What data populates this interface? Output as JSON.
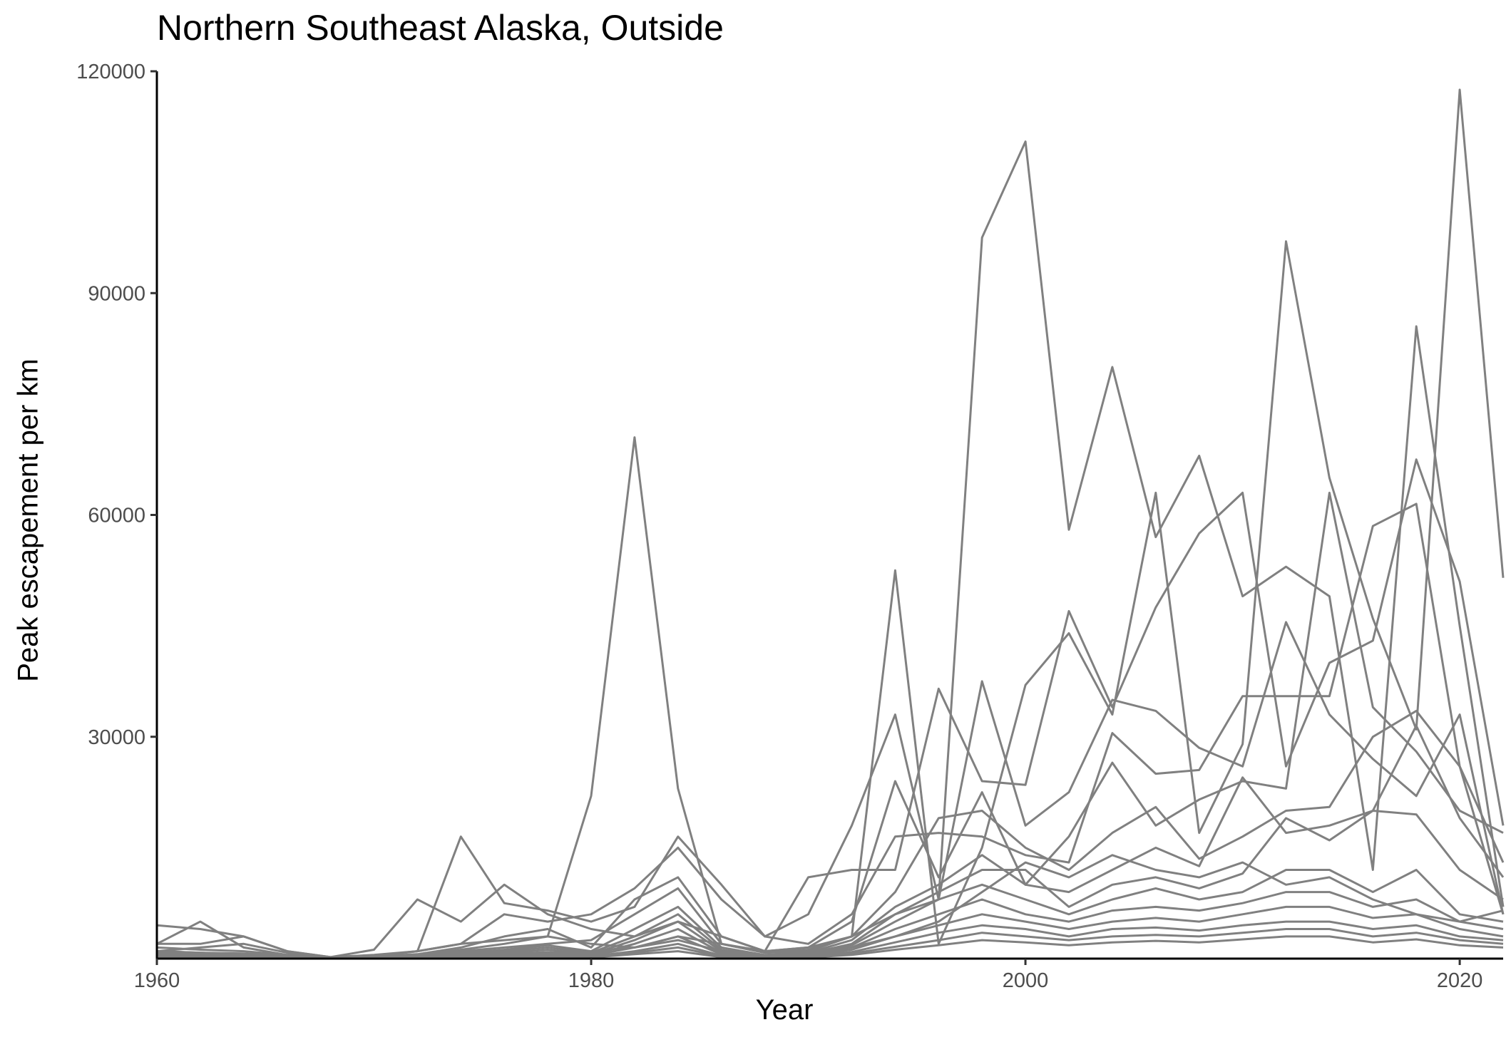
{
  "chart_data": {
    "type": "line",
    "title": "Northern Southeast Alaska, Outside",
    "xlabel": "Year",
    "ylabel": "Peak escapement per km",
    "xlim": [
      1960,
      2022
    ],
    "ylim": [
      0,
      120000
    ],
    "xticks": [
      1960,
      1980,
      2000,
      2020
    ],
    "yticks": [
      30000,
      60000,
      90000,
      120000
    ],
    "grid": false,
    "legend": "none",
    "line_color": "#808080",
    "series": [
      {
        "x": [
          1960,
          1962,
          1964,
          1966,
          1968,
          1970,
          1972,
          1974,
          1976,
          1978,
          1980,
          1982,
          1984,
          1986,
          1988,
          1990,
          1992,
          1994,
          1996,
          1998,
          2000,
          2002,
          2004,
          2006,
          2008,
          2010,
          2012,
          2014,
          2016,
          2018,
          2020,
          2022
        ],
        "values": [
          500,
          800,
          600,
          300,
          100,
          400,
          1000,
          2000,
          2500,
          3000,
          2000,
          1500,
          3000,
          2000,
          1000,
          1500,
          3000,
          6000,
          8000,
          97500,
          110500,
          58000,
          80000,
          57000,
          68000,
          49000,
          53000,
          49000,
          12000,
          85500,
          45000,
          7000
        ]
      },
      {
        "x": [
          1960,
          1962,
          1964,
          1966,
          1968,
          1970,
          1972,
          1974,
          1976,
          1978,
          1980,
          1982,
          1984,
          1986,
          1988,
          1990,
          1992,
          1994,
          1996,
          1998,
          2000,
          2002,
          2004,
          2006,
          2008,
          2010,
          2012,
          2014,
          2016,
          2018,
          2020,
          2022
        ],
        "values": [
          1000,
          800,
          600,
          300,
          100,
          200,
          500,
          1200,
          2000,
          3000,
          22000,
          70500,
          23000,
          2000,
          800,
          1200,
          3000,
          52500,
          2000,
          15000,
          37000,
          44000,
          33000,
          63000,
          17000,
          29000,
          97000,
          65000,
          46000,
          31000,
          117500,
          51500
        ]
      },
      {
        "x": [
          1960,
          1962,
          1964,
          1966,
          1968,
          1970,
          1972,
          1974,
          1976,
          1978,
          1980,
          1982,
          1984,
          1986,
          1988,
          1990,
          1992,
          1994,
          1996,
          1998,
          2000,
          2002,
          2004,
          2006,
          2008,
          2010,
          2012,
          2014,
          2016,
          2018,
          2020,
          2022
        ],
        "values": [
          4500,
          4000,
          3000,
          1000,
          200,
          1200,
          8000,
          5000,
          10000,
          6000,
          4000,
          3000,
          5000,
          3000,
          1000,
          11000,
          12000,
          12000,
          36500,
          24000,
          23500,
          47000,
          34000,
          47500,
          57500,
          63000,
          26000,
          40000,
          43000,
          67500,
          51000,
          18000
        ]
      },
      {
        "x": [
          1960,
          1962,
          1964,
          1966,
          1968,
          1970,
          1972,
          1974,
          1976,
          1978,
          1980,
          1982,
          1984,
          1986,
          1988,
          1990,
          1992,
          1994,
          1996,
          1998,
          2000,
          2002,
          2004,
          2006,
          2008,
          2010,
          2012,
          2014,
          2016,
          2018,
          2020,
          2022
        ],
        "values": [
          2000,
          5000,
          1500,
          500,
          100,
          300,
          1000,
          16500,
          7500,
          6500,
          5000,
          7000,
          16500,
          10000,
          3000,
          6000,
          18000,
          33000,
          8000,
          37500,
          18000,
          22500,
          35000,
          33500,
          28500,
          26000,
          45500,
          33000,
          27000,
          22000,
          33000,
          6000
        ]
      },
      {
        "x": [
          1960,
          1962,
          1964,
          1966,
          1968,
          1970,
          1972,
          1974,
          1976,
          1978,
          1980,
          1982,
          1984,
          1986,
          1988,
          1990,
          1992,
          1994,
          1996,
          1998,
          2000,
          2002,
          2004,
          2006,
          2008,
          2010,
          2012,
          2014,
          2016,
          2018,
          2020,
          2022
        ],
        "values": [
          2000,
          2000,
          3000,
          1000,
          200,
          500,
          1000,
          2000,
          6000,
          5000,
          6000,
          9500,
          15000,
          8000,
          3000,
          2000,
          6000,
          16500,
          17000,
          16500,
          14000,
          13000,
          30500,
          25000,
          25500,
          35500,
          35500,
          35500,
          58500,
          61500,
          26000,
          6000
        ]
      },
      {
        "x": [
          1960,
          1962,
          1964,
          1966,
          1968,
          1970,
          1972,
          1974,
          1976,
          1978,
          1980,
          1982,
          1984,
          1986,
          1988,
          1990,
          1992,
          1994,
          1996,
          1998,
          2000,
          2002,
          2004,
          2006,
          2008,
          2010,
          2012,
          2014,
          2016,
          2018,
          2020,
          2022
        ],
        "values": [
          1000,
          1500,
          2000,
          800,
          100,
          300,
          600,
          1500,
          3000,
          4000,
          1500,
          8000,
          11000,
          3000,
          1000,
          1500,
          5000,
          24000,
          11000,
          22500,
          10000,
          16500,
          26500,
          18000,
          21500,
          24000,
          23000,
          63000,
          34000,
          28000,
          20000,
          17000
        ]
      },
      {
        "x": [
          1960,
          1962,
          1964,
          1966,
          1968,
          1970,
          1972,
          1974,
          1976,
          1978,
          1980,
          1982,
          1984,
          1986,
          1988,
          1990,
          1992,
          1994,
          1996,
          1998,
          2000,
          2002,
          2004,
          2006,
          2008,
          2010,
          2012,
          2014,
          2016,
          2018,
          2020,
          2022
        ],
        "values": [
          1500,
          1200,
          1000,
          500,
          100,
          200,
          400,
          1000,
          1500,
          2000,
          2500,
          6000,
          9500,
          2000,
          800,
          1000,
          3000,
          9000,
          19000,
          20000,
          15000,
          12000,
          17000,
          20500,
          13500,
          16500,
          20000,
          20500,
          30000,
          33500,
          26000,
          13000
        ]
      },
      {
        "x": [
          1960,
          1962,
          1964,
          1966,
          1968,
          1970,
          1972,
          1974,
          1976,
          1978,
          1980,
          1982,
          1984,
          1986,
          1988,
          1990,
          1992,
          1994,
          1996,
          1998,
          2000,
          2002,
          2004,
          2006,
          2008,
          2010,
          2012,
          2014,
          2016,
          2018,
          2020,
          2022
        ],
        "values": [
          1000,
          800,
          700,
          400,
          100,
          200,
          300,
          800,
          1200,
          1800,
          1000,
          4000,
          7000,
          1500,
          500,
          800,
          2500,
          7000,
          10000,
          14000,
          10000,
          9000,
          12000,
          15000,
          12500,
          24500,
          17000,
          18000,
          20000,
          31500,
          19000,
          11000
        ]
      },
      {
        "x": [
          1960,
          1962,
          1964,
          1966,
          1968,
          1970,
          1972,
          1974,
          1976,
          1978,
          1980,
          1982,
          1984,
          1986,
          1988,
          1990,
          1992,
          1994,
          1996,
          1998,
          2000,
          2002,
          2004,
          2006,
          2008,
          2010,
          2012,
          2014,
          2016,
          2018,
          2020,
          2022
        ],
        "values": [
          800,
          700,
          500,
          300,
          100,
          150,
          300,
          600,
          1000,
          1500,
          800,
          3000,
          6000,
          1200,
          400,
          700,
          2000,
          6000,
          9000,
          12000,
          12000,
          7000,
          10000,
          11000,
          9500,
          11500,
          19000,
          16000,
          20000,
          19500,
          12000,
          8000
        ]
      },
      {
        "x": [
          1960,
          1962,
          1964,
          1966,
          1968,
          1970,
          1972,
          1974,
          1976,
          1978,
          1980,
          1982,
          1984,
          1986,
          1988,
          1990,
          1992,
          1994,
          1996,
          1998,
          2000,
          2002,
          2004,
          2006,
          2008,
          2010,
          2012,
          2014,
          2016,
          2018,
          2020,
          2022
        ],
        "values": [
          600,
          500,
          400,
          200,
          50,
          100,
          250,
          500,
          800,
          1200,
          600,
          2500,
          5000,
          1000,
          300,
          600,
          1800,
          5000,
          8000,
          10000,
          8000,
          6000,
          8000,
          9500,
          8000,
          9000,
          12000,
          12000,
          9000,
          12000,
          6000,
          5000
        ]
      },
      {
        "x": [
          1960,
          1962,
          1964,
          1966,
          1968,
          1970,
          1972,
          1974,
          1976,
          1978,
          1980,
          1982,
          1984,
          1986,
          1988,
          1990,
          1992,
          1994,
          1996,
          1998,
          2000,
          2002,
          2004,
          2006,
          2008,
          2010,
          2012,
          2014,
          2016,
          2018,
          2020,
          2022
        ],
        "values": [
          400,
          300,
          300,
          150,
          50,
          100,
          200,
          400,
          600,
          900,
          500,
          2000,
          4000,
          800,
          250,
          500,
          1500,
          4000,
          6000,
          8000,
          6000,
          5000,
          6500,
          7000,
          6500,
          7500,
          9000,
          9000,
          7000,
          8000,
          5000,
          4000
        ]
      },
      {
        "x": [
          1960,
          1962,
          1964,
          1966,
          1968,
          1970,
          1972,
          1974,
          1976,
          1978,
          1980,
          1982,
          1984,
          1986,
          1988,
          1990,
          1992,
          1994,
          1996,
          1998,
          2000,
          2002,
          2004,
          2006,
          2008,
          2010,
          2012,
          2014,
          2016,
          2018,
          2020,
          2022
        ],
        "values": [
          300,
          250,
          200,
          100,
          50,
          80,
          150,
          300,
          500,
          700,
          400,
          1500,
          3000,
          600,
          200,
          400,
          1200,
          3000,
          4500,
          6000,
          5000,
          4000,
          5000,
          5500,
          5000,
          6000,
          7000,
          7000,
          5500,
          6000,
          4000,
          3000
        ]
      },
      {
        "x": [
          1960,
          1962,
          1964,
          1966,
          1968,
          1970,
          1972,
          1974,
          1976,
          1978,
          1980,
          1982,
          1984,
          1986,
          1988,
          1990,
          1992,
          1994,
          1996,
          1998,
          2000,
          2002,
          2004,
          2006,
          2008,
          2010,
          2012,
          2014,
          2016,
          2018,
          2020,
          2022
        ],
        "values": [
          200,
          200,
          150,
          80,
          30,
          60,
          100,
          200,
          400,
          500,
          300,
          1000,
          2000,
          400,
          150,
          300,
          900,
          2200,
          3500,
          4500,
          4000,
          3000,
          4000,
          4200,
          3800,
          4500,
          5000,
          5000,
          4000,
          4500,
          3000,
          2500
        ]
      },
      {
        "x": [
          1960,
          1962,
          1964,
          1966,
          1968,
          1970,
          1972,
          1974,
          1976,
          1978,
          1980,
          1982,
          1984,
          1986,
          1988,
          1990,
          1992,
          1994,
          1996,
          1998,
          2000,
          2002,
          2004,
          2006,
          2008,
          2010,
          2012,
          2014,
          2016,
          2018,
          2020,
          2022
        ],
        "values": [
          150,
          150,
          100,
          60,
          20,
          40,
          80,
          150,
          300,
          400,
          200,
          800,
          1500,
          300,
          100,
          200,
          700,
          1600,
          2500,
          3500,
          3000,
          2500,
          3000,
          3200,
          3000,
          3500,
          4000,
          4000,
          3000,
          3500,
          2500,
          2000
        ]
      },
      {
        "x": [
          1960,
          1962,
          1964,
          1966,
          1968,
          1970,
          1972,
          1974,
          1976,
          1978,
          1980,
          1982,
          1984,
          1986,
          1988,
          1990,
          1992,
          1994,
          1996,
          1998,
          2000,
          2002,
          2004,
          2006,
          2008,
          2010,
          2012,
          2014,
          2016,
          2018,
          2020,
          2022
        ],
        "values": [
          100,
          100,
          80,
          40,
          10,
          30,
          60,
          100,
          200,
          300,
          150,
          600,
          1000,
          200,
          80,
          150,
          500,
          1200,
          1800,
          2500,
          2200,
          1800,
          2200,
          2400,
          2200,
          2600,
          3000,
          3000,
          2200,
          2600,
          1800,
          1500
        ]
      },
      {
        "x": [
          1960,
          1962,
          1964,
          1966,
          1968,
          1970,
          1972,
          1974,
          1976,
          1978,
          1980,
          1982,
          1984,
          1986,
          1988,
          1990,
          1992,
          1994,
          1996,
          1998,
          2000,
          2002,
          2004,
          2006,
          2008,
          2010,
          2012,
          2014,
          2016,
          2018,
          2020,
          2022
        ],
        "values": [
          100,
          400,
          300,
          200,
          50,
          100,
          200,
          300,
          500,
          800,
          1000,
          1500,
          2500,
          1000,
          300,
          600,
          1500,
          3000,
          5000,
          9000,
          13000,
          11000,
          14000,
          12000,
          11000,
          13000,
          10000,
          11000,
          8000,
          6000,
          5000,
          6500
        ]
      }
    ]
  }
}
